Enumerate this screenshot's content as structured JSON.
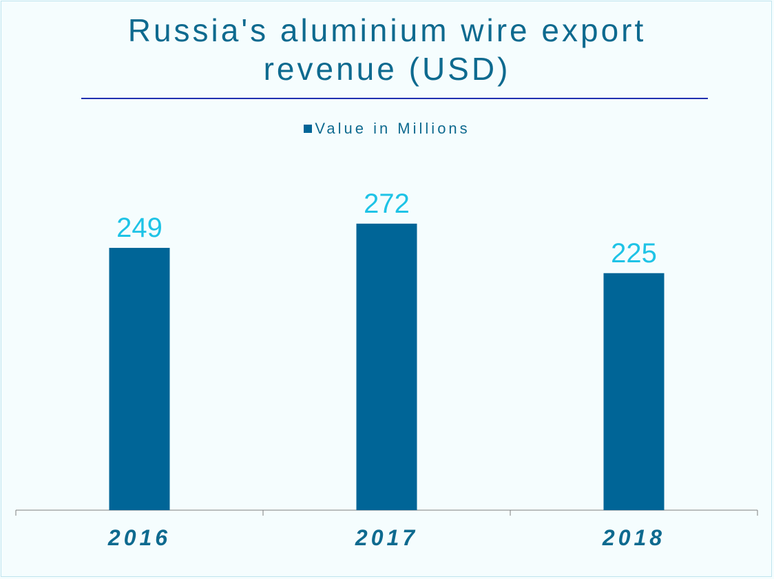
{
  "title": "Russia's aluminium wire export revenue (USD)",
  "legend": {
    "label": "Value in Millions"
  },
  "colors": {
    "bar": "#006597",
    "data_label": "#1ec3e6",
    "category_label": "#0e6a8f",
    "axis": "#7f7f7f"
  },
  "chart_data": {
    "type": "bar",
    "title": "Russia's aluminium wire export revenue (USD)",
    "categories": [
      "2016",
      "2017",
      "2018"
    ],
    "series": [
      {
        "name": "Value in Millions",
        "values": [
          249,
          272,
          225
        ]
      }
    ],
    "xlabel": "",
    "ylabel": "",
    "ylim": [
      0,
      300
    ],
    "grid": false,
    "legend_position": "top",
    "data_labels": true
  }
}
